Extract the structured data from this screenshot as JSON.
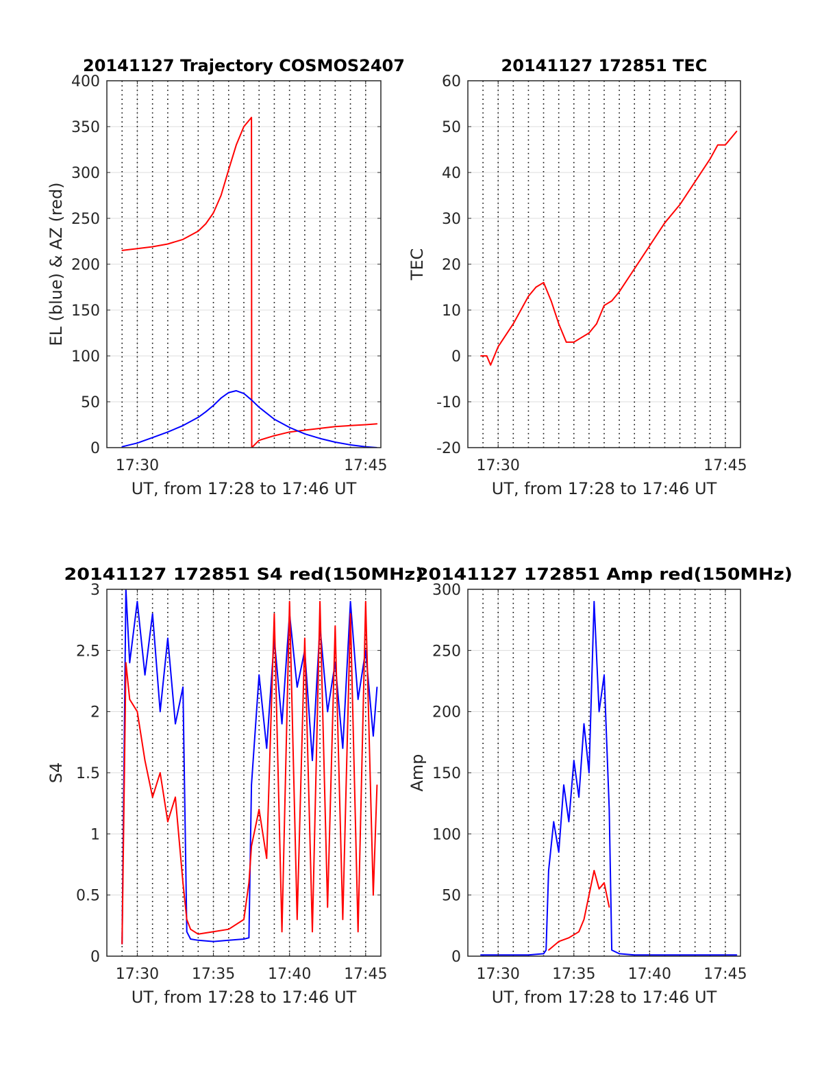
{
  "colors": {
    "el": "#0000ff",
    "az": "#ff0000",
    "axis": "#262626",
    "grid": "#dcdcdc",
    "background": "#ffffff"
  },
  "chart_data": [
    {
      "type": "line",
      "title": "20141127 Trajectory COSMOS2407",
      "xlabel": "UT, from 17:28 to 17:46 UT",
      "ylabel": "EL (blue) & AZ (red)",
      "xlim": [
        "17:28",
        "17:46"
      ],
      "ylim": [
        0,
        400
      ],
      "xticks": [
        {
          "value": "17:30",
          "label": "17:30"
        },
        {
          "value": "17:45",
          "label": "17:45"
        }
      ],
      "yticks": [
        0,
        50,
        100,
        150,
        200,
        250,
        300,
        350,
        400
      ],
      "grid": true,
      "vertical_dotted_lines": [
        "17:29",
        "17:30",
        "17:31",
        "17:32",
        "17:33",
        "17:34",
        "17:35",
        "17:36",
        "17:37",
        "17:38",
        "17:39",
        "17:40",
        "17:41",
        "17:42",
        "17:43",
        "17:44",
        "17:45"
      ],
      "series": [
        {
          "color": "#ff0000",
          "x": [
            "17:29:00",
            "17:30:00",
            "17:31:00",
            "17:32:00",
            "17:33:00",
            "17:34:00",
            "17:34:30",
            "17:35:00",
            "17:35:30",
            "17:36:00",
            "17:36:30",
            "17:37:00",
            "17:37:30",
            "17:37:31",
            "17:38:00",
            "17:39:00",
            "17:40:00",
            "17:41:00",
            "17:42:00",
            "17:43:00",
            "17:44:00",
            "17:45:00",
            "17:45:45"
          ],
          "y": [
            215,
            217,
            219,
            222,
            227,
            236,
            244,
            256,
            275,
            303,
            330,
            350,
            360,
            0,
            8,
            13,
            17,
            19,
            21,
            23,
            24,
            25,
            26
          ]
        },
        {
          "color": "#0000ff",
          "x": [
            "17:29:00",
            "17:30:00",
            "17:31:00",
            "17:32:00",
            "17:33:00",
            "17:34:00",
            "17:34:30",
            "17:35:00",
            "17:35:30",
            "17:36:00",
            "17:36:30",
            "17:37:00",
            "17:37:30",
            "17:38:00",
            "17:39:00",
            "17:40:00",
            "17:41:00",
            "17:42:00",
            "17:43:00",
            "17:44:00",
            "17:45:00",
            "17:45:45"
          ],
          "y": [
            1,
            5,
            11,
            17,
            24,
            33,
            39,
            46,
            54,
            60,
            62,
            59,
            52,
            44,
            31,
            22,
            15,
            10,
            6,
            3,
            1,
            0
          ]
        }
      ]
    },
    {
      "type": "line",
      "title": "20141127 172851 TEC",
      "xlabel": "UT, from 17:28 to 17:46 UT",
      "ylabel": "TEC",
      "xlim": [
        "17:28",
        "17:46"
      ],
      "ylim": [
        -20,
        60
      ],
      "xticks": [
        {
          "value": "17:30",
          "label": "17:30"
        },
        {
          "value": "17:45",
          "label": "17:45"
        }
      ],
      "yticks": [
        -20,
        -10,
        0,
        10,
        20,
        30,
        40,
        50,
        60
      ],
      "grid": true,
      "vertical_dotted_lines": [
        "17:29",
        "17:30",
        "17:31",
        "17:32",
        "17:33",
        "17:34",
        "17:35",
        "17:36",
        "17:37",
        "17:38",
        "17:39",
        "17:40",
        "17:41",
        "17:42",
        "17:43",
        "17:44",
        "17:45"
      ],
      "series": [
        {
          "color": "#ff0000",
          "x": [
            "17:28:51",
            "17:29:15",
            "17:29:30",
            "17:30:00",
            "17:31:00",
            "17:32:00",
            "17:32:30",
            "17:33:00",
            "17:33:30",
            "17:34:00",
            "17:34:30",
            "17:35:00",
            "17:35:30",
            "17:36:00",
            "17:36:30",
            "17:37:00",
            "17:37:30",
            "17:38:00",
            "17:39:00",
            "17:40:00",
            "17:41:00",
            "17:42:00",
            "17:43:00",
            "17:44:00",
            "17:44:30",
            "17:45:00",
            "17:45:45"
          ],
          "y": [
            0,
            0,
            -2,
            2,
            7,
            13,
            15,
            16,
            12,
            7,
            3,
            3,
            4,
            5,
            7,
            11,
            12,
            14,
            19,
            24,
            29,
            33,
            38,
            43,
            46,
            46,
            49
          ]
        }
      ]
    },
    {
      "type": "line",
      "title": "20141127 172851 S4 red(150MHz)",
      "xlabel": "UT, from 17:28 to 17:46 UT",
      "ylabel": "S4",
      "xlim": [
        "17:28",
        "17:46"
      ],
      "ylim": [
        0,
        3
      ],
      "xticks": [
        {
          "value": "17:30",
          "label": "17:30"
        },
        {
          "value": "17:35",
          "label": "17:35"
        },
        {
          "value": "17:40",
          "label": "17:40"
        },
        {
          "value": "17:45",
          "label": "17:45"
        }
      ],
      "yticks": [
        0,
        0.5,
        1,
        1.5,
        2,
        2.5,
        3
      ],
      "yticklabels": [
        "0",
        "0.5",
        "1",
        "1.5",
        "2",
        "2.5",
        "3"
      ],
      "grid": true,
      "vertical_dotted_lines": [
        "17:29",
        "17:30",
        "17:31",
        "17:32",
        "17:33",
        "17:34",
        "17:35",
        "17:36",
        "17:37",
        "17:38",
        "17:39",
        "17:40",
        "17:41",
        "17:42",
        "17:43",
        "17:44",
        "17:45"
      ],
      "series": [
        {
          "color": "#0000ff",
          "x": [
            "17:29:00",
            "17:29:15",
            "17:29:30",
            "17:30:00",
            "17:30:30",
            "17:31:00",
            "17:31:30",
            "17:32:00",
            "17:32:30",
            "17:33:00",
            "17:33:15",
            "17:33:30",
            "17:34:00",
            "17:35:00",
            "17:36:00",
            "17:37:00",
            "17:37:20",
            "17:37:30",
            "17:38:00",
            "17:38:30",
            "17:39:00",
            "17:39:30",
            "17:40:00",
            "17:40:30",
            "17:41:00",
            "17:41:30",
            "17:42:00",
            "17:42:30",
            "17:43:00",
            "17:43:30",
            "17:44:00",
            "17:44:30",
            "17:45:00",
            "17:45:30",
            "17:45:45"
          ],
          "y": [
            0.1,
            3.0,
            2.4,
            2.9,
            2.3,
            2.8,
            2.0,
            2.6,
            1.9,
            2.2,
            0.2,
            0.14,
            0.13,
            0.12,
            0.13,
            0.14,
            0.15,
            1.4,
            2.3,
            1.7,
            2.6,
            1.9,
            2.8,
            2.2,
            2.5,
            1.6,
            2.7,
            2.0,
            2.4,
            1.7,
            2.9,
            2.1,
            2.5,
            1.8,
            2.2
          ]
        },
        {
          "color": "#ff0000",
          "x": [
            "17:29:00",
            "17:29:15",
            "17:29:30",
            "17:30:00",
            "17:30:30",
            "17:31:00",
            "17:31:30",
            "17:32:00",
            "17:32:30",
            "17:33:00",
            "17:33:15",
            "17:33:30",
            "17:34:00",
            "17:35:00",
            "17:36:00",
            "17:37:00",
            "17:37:20",
            "17:37:30",
            "17:38:00",
            "17:38:30",
            "17:39:00",
            "17:39:30",
            "17:40:00",
            "17:40:30",
            "17:41:00",
            "17:41:30",
            "17:42:00",
            "17:42:30",
            "17:43:00",
            "17:43:30",
            "17:44:00",
            "17:44:30",
            "17:45:00",
            "17:45:30",
            "17:45:45"
          ],
          "y": [
            0.1,
            2.4,
            2.1,
            2.0,
            1.6,
            1.3,
            1.5,
            1.1,
            1.3,
            0.6,
            0.3,
            0.22,
            0.18,
            0.2,
            0.22,
            0.3,
            0.6,
            0.9,
            1.2,
            0.8,
            2.8,
            0.2,
            2.9,
            0.3,
            2.6,
            0.2,
            2.9,
            0.4,
            2.7,
            0.3,
            2.8,
            0.2,
            2.9,
            0.5,
            1.4
          ]
        }
      ]
    },
    {
      "type": "line",
      "title": "20141127 172851 Amp red(150MHz)",
      "xlabel": "UT, from 17:28 to 17:46 UT",
      "ylabel": "Amp",
      "xlim": [
        "17:28",
        "17:46"
      ],
      "ylim": [
        0,
        300
      ],
      "xticks": [
        {
          "value": "17:30",
          "label": "17:30"
        },
        {
          "value": "17:35",
          "label": "17:35"
        },
        {
          "value": "17:40",
          "label": "17:40"
        },
        {
          "value": "17:45",
          "label": "17:45"
        }
      ],
      "yticks": [
        0,
        50,
        100,
        150,
        200,
        250,
        300
      ],
      "grid": true,
      "vertical_dotted_lines": [
        "17:29",
        "17:30",
        "17:31",
        "17:32",
        "17:33",
        "17:34",
        "17:35",
        "17:36",
        "17:37",
        "17:38",
        "17:39",
        "17:40",
        "17:41",
        "17:42",
        "17:43",
        "17:44",
        "17:45"
      ],
      "series": [
        {
          "color": "#0000ff",
          "x": [
            "17:28:51",
            "17:30:00",
            "17:31:00",
            "17:32:00",
            "17:33:00",
            "17:33:10",
            "17:33:20",
            "17:33:40",
            "17:34:00",
            "17:34:20",
            "17:34:40",
            "17:35:00",
            "17:35:20",
            "17:35:40",
            "17:36:00",
            "17:36:20",
            "17:36:40",
            "17:37:00",
            "17:37:20",
            "17:37:30",
            "17:38:00",
            "17:39:00",
            "17:40:00",
            "17:41:00",
            "17:42:00",
            "17:43:00",
            "17:44:00",
            "17:45:00",
            "17:45:45"
          ],
          "y": [
            1,
            1,
            1,
            1,
            2,
            5,
            70,
            110,
            85,
            140,
            110,
            160,
            130,
            190,
            150,
            290,
            200,
            230,
            120,
            5,
            2,
            1,
            1,
            1,
            1,
            1,
            1,
            1,
            1
          ]
        },
        {
          "color": "#ff0000",
          "x": [
            "17:33:20",
            "17:34:00",
            "17:34:40",
            "17:35:20",
            "17:35:40",
            "17:36:00",
            "17:36:20",
            "17:36:40",
            "17:37:00",
            "17:37:20"
          ],
          "y": [
            5,
            12,
            15,
            20,
            30,
            50,
            70,
            55,
            60,
            40
          ]
        }
      ]
    }
  ]
}
